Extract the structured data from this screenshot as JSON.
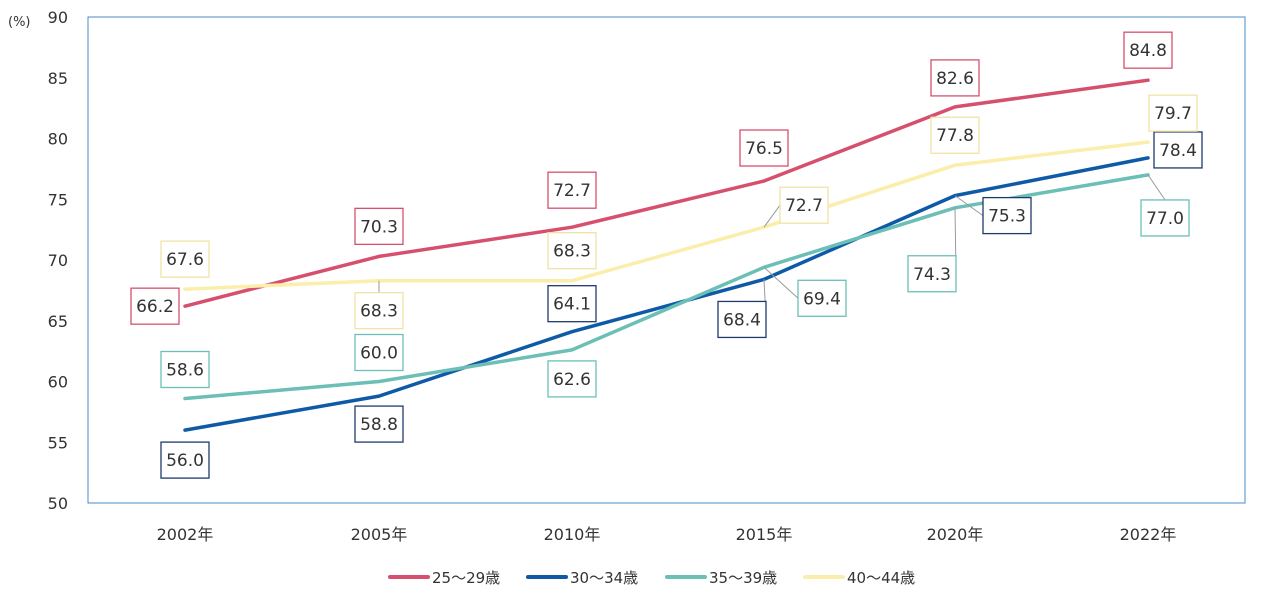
{
  "chart_data": {
    "type": "line",
    "unit_label": "(%)",
    "categories": [
      "2002年",
      "2005年",
      "2010年",
      "2015年",
      "2020年",
      "2022年"
    ],
    "ylim": [
      50,
      90
    ],
    "yticks": [
      50,
      55,
      60,
      65,
      70,
      75,
      80,
      85,
      90
    ],
    "grid": false,
    "legend_position": "bottom",
    "series": [
      {
        "name": "25～29歳",
        "color": "#d6506e",
        "values": [
          66.2,
          70.3,
          72.7,
          76.5,
          82.6,
          84.8
        ]
      },
      {
        "name": "30～34歳",
        "color": "#0e5aa7",
        "values": [
          56.0,
          58.8,
          64.1,
          68.4,
          75.3,
          78.4
        ]
      },
      {
        "name": "35～39歳",
        "color": "#6bbfb6",
        "values": [
          58.6,
          60.0,
          62.6,
          69.4,
          74.3,
          77.0
        ]
      },
      {
        "name": "40～44歳",
        "color": "#fbeeaa",
        "values": [
          67.6,
          68.3,
          68.3,
          72.7,
          77.8,
          79.7
        ]
      }
    ],
    "label_border_colors": [
      "#d6506e",
      "#1f3a6e",
      "#6bbfb6",
      "#f1e3a6"
    ]
  }
}
